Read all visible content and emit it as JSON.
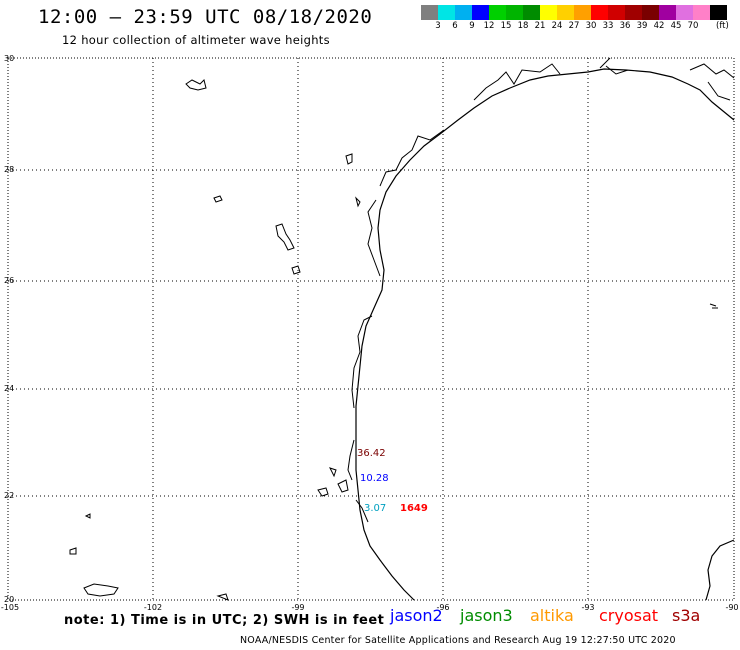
{
  "header": {
    "title": "12:00 – 23:59 UTC 08/18/2020",
    "subtitle": "12 hour collection of altimeter wave heights"
  },
  "legend": {
    "colors": [
      "#7f7f7f",
      "#00e5e5",
      "#00b0f0",
      "#0000ff",
      "#00d000",
      "#00b400",
      "#008c00",
      "#ffff00",
      "#ffd000",
      "#ffa000",
      "#ff0000",
      "#d00000",
      "#a00000",
      "#7a0000",
      "#a000a0",
      "#e070e0",
      "#ff80c8",
      "#000000"
    ],
    "labels": [
      "3",
      "6",
      "9",
      "12",
      "15",
      "18",
      "21",
      "24",
      "27",
      "30",
      "33",
      "36",
      "39",
      "42",
      "45",
      "70"
    ],
    "unit": "(ft)"
  },
  "axes": {
    "lat_labels": [
      "30",
      "28",
      "26",
      "24",
      "22",
      "20"
    ],
    "lon_labels": [
      "-105",
      "-102",
      "-99",
      "-96",
      "-93",
      "-90"
    ]
  },
  "observations": [
    {
      "label": "36.42",
      "color": "#7a0000"
    },
    {
      "label": "10.28",
      "color": "#0000ff"
    },
    {
      "label": "3.07",
      "color": "#00a0c0"
    },
    {
      "label": "1649",
      "color": "#ff0000"
    }
  ],
  "note": "note: 1) Time is in UTC; 2) SWH is in feet",
  "satellites": [
    {
      "name": "jason2",
      "color": "#0000ff"
    },
    {
      "name": "jason3",
      "color": "#008c00"
    },
    {
      "name": "altika",
      "color": "#ff9900"
    },
    {
      "name": "cryosat",
      "color": "#ff0000"
    },
    {
      "name": "s3a",
      "color": "#a00000"
    }
  ],
  "footer": "NOAA/NESDIS Center for Satellite Applications and Research    Aug 19 12:27:50 UTC 2020"
}
